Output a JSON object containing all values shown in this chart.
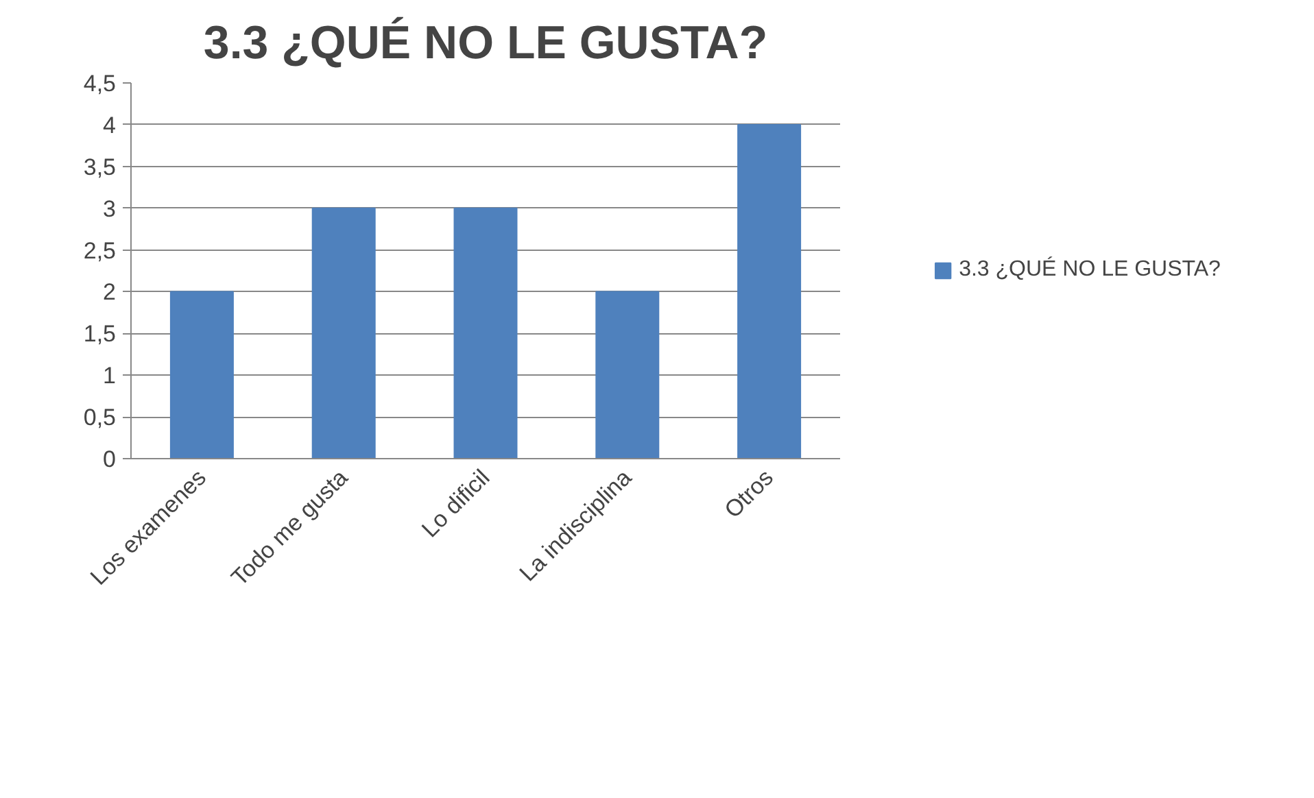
{
  "chart_data": {
    "type": "bar",
    "title": "3.3 ¿QUÉ NO LE GUSTA?",
    "categories": [
      "Los examenes",
      "Todo me gusta",
      "Lo dificil",
      "La indisciplina",
      "Otros"
    ],
    "series": [
      {
        "name": "3.3 ¿QUÉ NO LE GUSTA?",
        "color": "#4f81bd",
        "values": [
          2,
          3,
          3,
          2,
          4
        ]
      }
    ],
    "ylim": [
      0,
      4.5
    ],
    "yticks": [
      0,
      {
        "value": 0.5,
        "label": "0,5"
      },
      1,
      {
        "value": 1.5,
        "label": "1,5"
      },
      2,
      {
        "value": 2.5,
        "label": "2,5"
      },
      3,
      {
        "value": 3.5,
        "label": "3,5"
      },
      4,
      {
        "value": 4.5,
        "label": "4,5"
      }
    ],
    "grid": "y",
    "legend": "right"
  }
}
